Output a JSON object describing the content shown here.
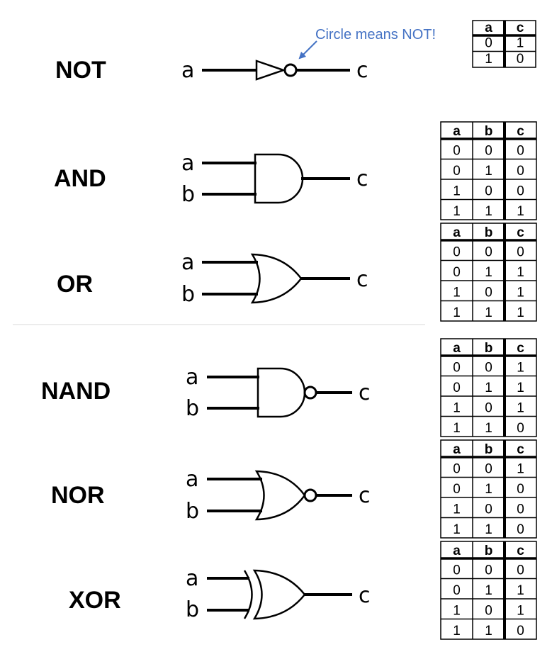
{
  "annotation": {
    "text": "Circle means NOT!",
    "color": "#4472c4"
  },
  "gates": [
    {
      "name": "NOT",
      "inputs": [
        "a"
      ],
      "output": "c",
      "truth_table": {
        "headers": [
          "a",
          "c"
        ],
        "rows": [
          [
            "0",
            "1"
          ],
          [
            "1",
            "0"
          ]
        ]
      }
    },
    {
      "name": "AND",
      "inputs": [
        "a",
        "b"
      ],
      "output": "c",
      "truth_table": {
        "headers": [
          "a",
          "b",
          "c"
        ],
        "rows": [
          [
            "0",
            "0",
            "0"
          ],
          [
            "0",
            "1",
            "0"
          ],
          [
            "1",
            "0",
            "0"
          ],
          [
            "1",
            "1",
            "1"
          ]
        ]
      }
    },
    {
      "name": "OR",
      "inputs": [
        "a",
        "b"
      ],
      "output": "c",
      "truth_table": {
        "headers": [
          "a",
          "b",
          "c"
        ],
        "rows": [
          [
            "0",
            "0",
            "0"
          ],
          [
            "0",
            "1",
            "1"
          ],
          [
            "1",
            "0",
            "1"
          ],
          [
            "1",
            "1",
            "1"
          ]
        ]
      }
    },
    {
      "name": "NAND",
      "inputs": [
        "a",
        "b"
      ],
      "output": "c",
      "truth_table": {
        "headers": [
          "a",
          "b",
          "c"
        ],
        "rows": [
          [
            "0",
            "0",
            "1"
          ],
          [
            "0",
            "1",
            "1"
          ],
          [
            "1",
            "0",
            "1"
          ],
          [
            "1",
            "1",
            "0"
          ]
        ]
      }
    },
    {
      "name": "NOR",
      "inputs": [
        "a",
        "b"
      ],
      "output": "c",
      "truth_table": {
        "headers": [
          "a",
          "b",
          "c"
        ],
        "rows": [
          [
            "0",
            "0",
            "1"
          ],
          [
            "0",
            "1",
            "0"
          ],
          [
            "1",
            "0",
            "0"
          ],
          [
            "1",
            "1",
            "0"
          ]
        ]
      }
    },
    {
      "name": "XOR",
      "inputs": [
        "a",
        "b"
      ],
      "output": "c",
      "truth_table": {
        "headers": [
          "a",
          "b",
          "c"
        ],
        "rows": [
          [
            "0",
            "0",
            "0"
          ],
          [
            "0",
            "1",
            "1"
          ],
          [
            "1",
            "0",
            "1"
          ],
          [
            "1",
            "1",
            "0"
          ]
        ]
      }
    }
  ]
}
